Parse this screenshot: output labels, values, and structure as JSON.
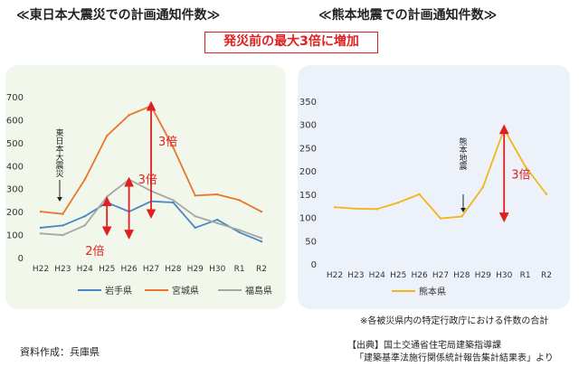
{
  "headings": {
    "left": "≪東日本大震災での計画通知件数≫",
    "right": "≪熊本地震での計画通知件数≫",
    "highlight": "発災前の最大3倍に増加"
  },
  "notes": {
    "districts": "※各被災県内の特定行政庁における件数の合計",
    "source_line1": "【出典】国土交通省住宅局建築指導課",
    "source_line2": "「建築基準法施行関係統計報告集計結果表」より",
    "author": "資料作成：兵庫県"
  },
  "colors": {
    "iwate": "#4a86c5",
    "miyagi": "#e8762c",
    "fukushima": "#a6a6a6",
    "kumamoto": "#f2b619",
    "arrow": "#e02020",
    "panel_left": "#f1f7ea",
    "panel_right": "#edf2fa"
  },
  "chart_data": [
    {
      "type": "line",
      "title": "≪東日本大震災での計画通知件数≫",
      "categories": [
        "H22",
        "H23",
        "H24",
        "H25",
        "H26",
        "H27",
        "H28",
        "H29",
        "H30",
        "R1",
        "R2"
      ],
      "ylim": [
        0,
        700
      ],
      "yticks": [
        0,
        100,
        200,
        300,
        400,
        500,
        600,
        700
      ],
      "grid": false,
      "legend": "bottom",
      "series": [
        {
          "name": "岩手県",
          "color": "#4a86c5",
          "values": [
            130,
            140,
            180,
            240,
            200,
            245,
            240,
            130,
            165,
            110,
            70
          ]
        },
        {
          "name": "宮城県",
          "color": "#e8762c",
          "values": [
            200,
            190,
            340,
            530,
            620,
            660,
            480,
            270,
            275,
            250,
            200
          ]
        },
        {
          "name": "福島県",
          "color": "#a6a6a6",
          "values": [
            105,
            98,
            140,
            265,
            340,
            290,
            250,
            180,
            150,
            120,
            85
          ]
        }
      ],
      "annotations": [
        {
          "text": "東日本大震災",
          "x": "H23"
        },
        {
          "text": "2倍",
          "x": "H25",
          "from": 115,
          "to": 245
        },
        {
          "text": "3倍",
          "x": "H26",
          "from": 100,
          "to": 330
        },
        {
          "text": "3倍",
          "x": "H27",
          "from": 190,
          "to": 660
        }
      ]
    },
    {
      "type": "line",
      "title": "≪熊本地震での計画通知件数≫",
      "categories": [
        "H22",
        "H23",
        "H24",
        "H25",
        "H26",
        "H27",
        "H28",
        "H29",
        "H30",
        "R1",
        "R2"
      ],
      "ylim": [
        0,
        350
      ],
      "yticks": [
        0,
        50,
        100,
        150,
        200,
        250,
        300,
        350
      ],
      "grid": false,
      "legend": "bottom",
      "series": [
        {
          "name": "熊本県",
          "color": "#f2b619",
          "values": [
            122,
            119,
            118,
            132,
            150,
            98,
            102,
            165,
            290,
            210,
            150
          ]
        }
      ],
      "annotations": [
        {
          "text": "熊本地震",
          "x": "H28"
        },
        {
          "text": "3倍",
          "x": "H30",
          "from": 100,
          "to": 290
        }
      ]
    }
  ]
}
